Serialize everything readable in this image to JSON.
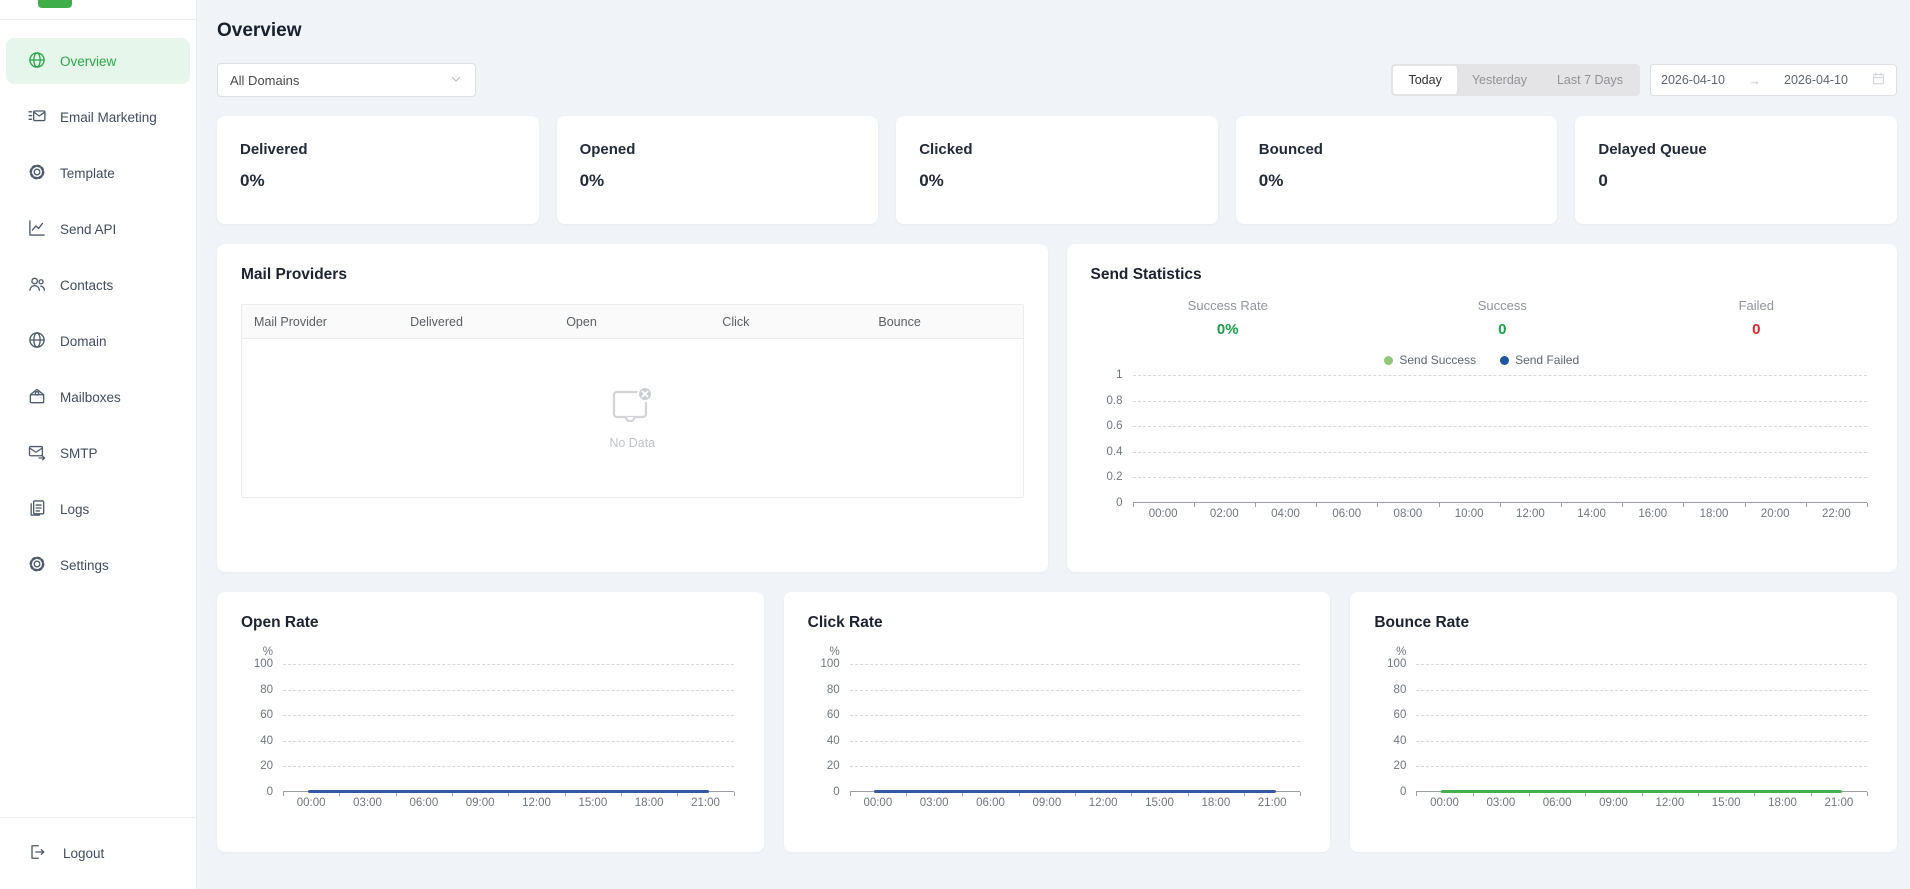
{
  "sidebar": {
    "items": [
      {
        "label": "Overview",
        "icon": "globe-icon",
        "active": true
      },
      {
        "label": "Email Marketing",
        "icon": "email-marketing-icon",
        "active": false
      },
      {
        "label": "Template",
        "icon": "gear-icon",
        "active": false
      },
      {
        "label": "Send API",
        "icon": "chart-line-icon",
        "active": false
      },
      {
        "label": "Contacts",
        "icon": "people-icon",
        "active": false
      },
      {
        "label": "Domain",
        "icon": "globe-icon",
        "active": false
      },
      {
        "label": "Mailboxes",
        "icon": "envelope-open-icon",
        "active": false
      },
      {
        "label": "SMTP",
        "icon": "envelope-send-icon",
        "active": false
      },
      {
        "label": "Logs",
        "icon": "document-icon",
        "active": false
      },
      {
        "label": "Settings",
        "icon": "gear-icon",
        "active": false
      }
    ],
    "logout_label": "Logout",
    "logo_color": "#3fae49"
  },
  "header": {
    "title": "Overview"
  },
  "filters": {
    "domain_select": {
      "value": "All Domains"
    },
    "range_buttons": [
      {
        "label": "Today",
        "active": true
      },
      {
        "label": "Yesterday",
        "active": false
      },
      {
        "label": "Last 7 Days",
        "active": false
      }
    ],
    "date_range": {
      "start": "2026-04-10",
      "end": "2026-04-10",
      "arrow": "→"
    }
  },
  "stat_cards": [
    {
      "label": "Delivered",
      "value": "0%"
    },
    {
      "label": "Opened",
      "value": "0%"
    },
    {
      "label": "Clicked",
      "value": "0%"
    },
    {
      "label": "Bounced",
      "value": "0%"
    },
    {
      "label": "Delayed Queue",
      "value": "0"
    }
  ],
  "mail_providers": {
    "title": "Mail Providers",
    "columns": [
      "Mail Provider",
      "Delivered",
      "Open",
      "Click",
      "Bounce"
    ],
    "rows": [],
    "empty_text": "No Data"
  },
  "send_statistics": {
    "title": "Send Statistics",
    "summary": [
      {
        "label": "Success Rate",
        "value": "0%",
        "color": "#1ca04a"
      },
      {
        "label": "Success",
        "value": "0",
        "color": "#1ca04a"
      },
      {
        "label": "Failed",
        "value": "0",
        "color": "#d9252d"
      }
    ],
    "legend": [
      {
        "label": "Send Success",
        "color": "#8fc877"
      },
      {
        "label": "Send Failed",
        "color": "#1c56a0"
      }
    ]
  },
  "chart_data": [
    {
      "id": "send-statistics",
      "type": "line",
      "title": "Send Statistics",
      "categories": [
        "00:00",
        "02:00",
        "04:00",
        "06:00",
        "08:00",
        "10:00",
        "12:00",
        "14:00",
        "16:00",
        "18:00",
        "20:00",
        "22:00"
      ],
      "yticks": [
        0,
        0.2,
        0.4,
        0.6,
        0.8,
        1
      ],
      "ylim": [
        0,
        1
      ],
      "grid": "dashed",
      "legend_position": "top",
      "series": [
        {
          "name": "Send Success",
          "color": "#8fc877",
          "values": []
        },
        {
          "name": "Send Failed",
          "color": "#1c56a0",
          "values": []
        }
      ]
    },
    {
      "id": "open-rate",
      "type": "line",
      "title": "Open Rate",
      "ylabel": "%",
      "categories": [
        "00:00",
        "03:00",
        "06:00",
        "09:00",
        "12:00",
        "15:00",
        "18:00",
        "21:00"
      ],
      "yticks": [
        0,
        20,
        40,
        60,
        80,
        100
      ],
      "ylim": [
        0,
        100
      ],
      "grid": "dashed",
      "series": [
        {
          "name": "Open Rate",
          "color": "#3458a4",
          "values": [
            0,
            0,
            0,
            0,
            0,
            0,
            0,
            0
          ]
        }
      ]
    },
    {
      "id": "click-rate",
      "type": "line",
      "title": "Click Rate",
      "ylabel": "%",
      "categories": [
        "00:00",
        "03:00",
        "06:00",
        "09:00",
        "12:00",
        "15:00",
        "18:00",
        "21:00"
      ],
      "yticks": [
        0,
        20,
        40,
        60,
        80,
        100
      ],
      "ylim": [
        0,
        100
      ],
      "grid": "dashed",
      "series": [
        {
          "name": "Click Rate",
          "color": "#3458a4",
          "values": [
            0,
            0,
            0,
            0,
            0,
            0,
            0,
            0
          ]
        }
      ]
    },
    {
      "id": "bounce-rate",
      "type": "line",
      "title": "Bounce Rate",
      "ylabel": "%",
      "categories": [
        "00:00",
        "03:00",
        "06:00",
        "09:00",
        "12:00",
        "15:00",
        "18:00",
        "21:00"
      ],
      "yticks": [
        0,
        20,
        40,
        60,
        80,
        100
      ],
      "ylim": [
        0,
        100
      ],
      "grid": "dashed",
      "series": [
        {
          "name": "Bounce Rate",
          "color": "#44b14e",
          "values": [
            0,
            0,
            0,
            0,
            0,
            0,
            0,
            0
          ]
        }
      ]
    }
  ]
}
